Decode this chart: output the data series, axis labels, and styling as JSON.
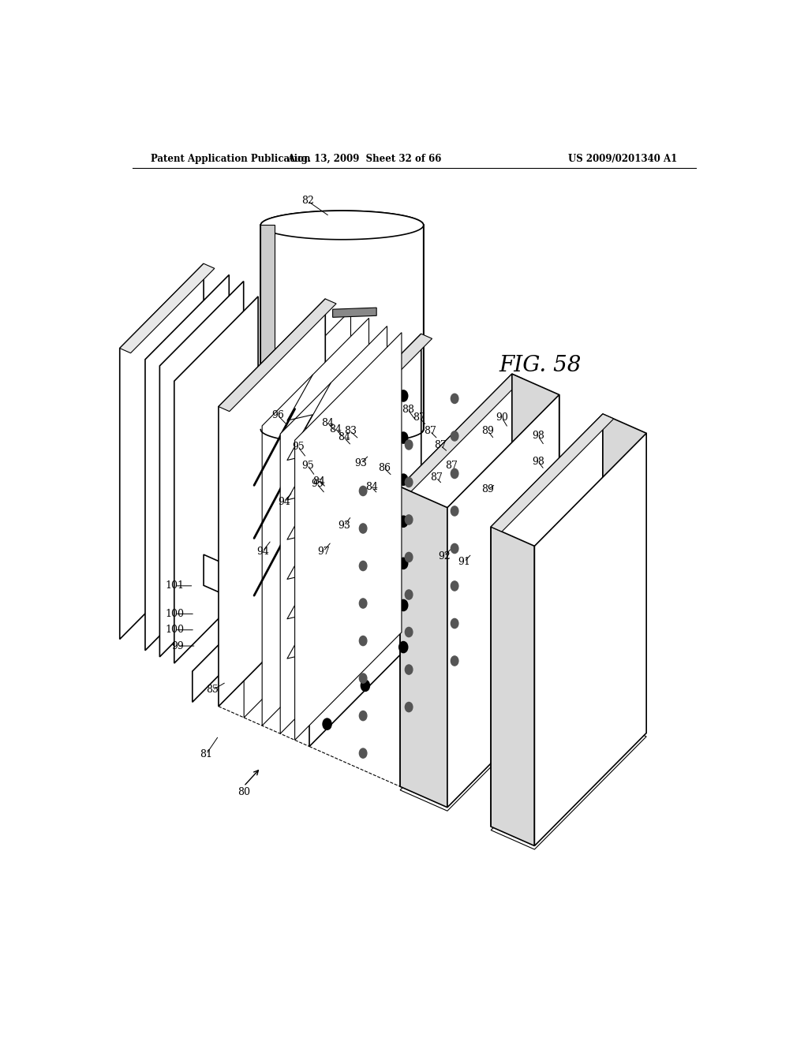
{
  "background_color": "#ffffff",
  "header_left": "Patent Application Publication",
  "header_center": "Aug. 13, 2009  Sheet 32 of 66",
  "header_right": "US 2009/0201340 A1",
  "fig_label": "FIG. 58"
}
